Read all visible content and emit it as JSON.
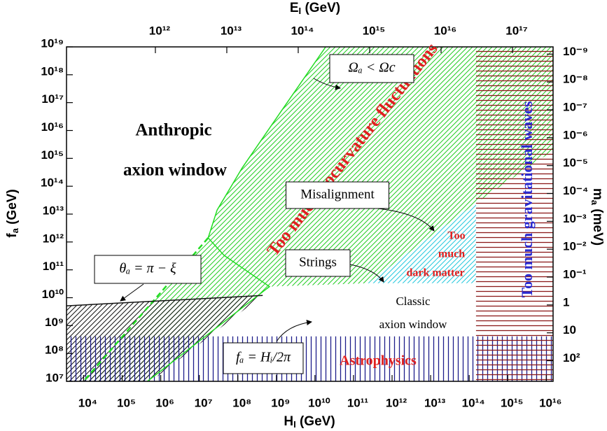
{
  "chart_data": {
    "type": "area",
    "x_label": [
      "H",
      "I",
      " (GeV)"
    ],
    "y_label": [
      "f",
      "a",
      " (GeV)"
    ],
    "x2_label": [
      "E",
      "I",
      " (GeV)"
    ],
    "y2_label": [
      "m",
      "a",
      " (meV)"
    ],
    "xscale": "log",
    "yscale": "log",
    "xlim": [
      3600,
      1.5e+16
    ],
    "ylim": [
      10000000.0,
      1e+19
    ],
    "x2lim": [
      57000000000.0,
      3.7e+17
    ],
    "y2lim": [
      550,
      5.5e-10
    ],
    "xticks": [
      {
        "value": 10000.0,
        "label": "10⁴"
      },
      {
        "value": 100000.0,
        "label": "10⁵"
      },
      {
        "value": 1000000.0,
        "label": "10⁶"
      },
      {
        "value": 10000000.0,
        "label": "10⁷"
      },
      {
        "value": 100000000.0,
        "label": "10⁸"
      },
      {
        "value": 1000000000.0,
        "label": "10⁹"
      },
      {
        "value": 10000000000.0,
        "label": "10¹⁰"
      },
      {
        "value": 100000000000.0,
        "label": "10¹¹"
      },
      {
        "value": 1000000000000.0,
        "label": "10¹²"
      },
      {
        "value": 10000000000000.0,
        "label": "10¹³"
      },
      {
        "value": 100000000000000.0,
        "label": "10¹⁴"
      },
      {
        "value": 1000000000000000.0,
        "label": "10¹⁵"
      },
      {
        "value": 1e+16,
        "label": "10¹⁶"
      }
    ],
    "yticks": [
      {
        "value": 10000000.0,
        "label": "10⁷"
      },
      {
        "value": 100000000.0,
        "label": "10⁸"
      },
      {
        "value": 1000000000.0,
        "label": "10⁹"
      },
      {
        "value": 10000000000.0,
        "label": "10¹⁰"
      },
      {
        "value": 100000000000.0,
        "label": "10¹¹"
      },
      {
        "value": 1000000000000.0,
        "label": "10¹²"
      },
      {
        "value": 10000000000000.0,
        "label": "10¹³"
      },
      {
        "value": 100000000000000.0,
        "label": "10¹⁴"
      },
      {
        "value": 1000000000000000.0,
        "label": "10¹⁵"
      },
      {
        "value": 1e+16,
        "label": "10¹⁶"
      },
      {
        "value": 1e+17,
        "label": "10¹⁷"
      },
      {
        "value": 1e+18,
        "label": "10¹⁸"
      },
      {
        "value": 1e+19,
        "label": "10¹⁹"
      }
    ],
    "x2ticks": [
      {
        "value": 1000000000000.0,
        "label": "10¹²"
      },
      {
        "value": 10000000000000.0,
        "label": "10¹³"
      },
      {
        "value": 100000000000000.0,
        "label": "10¹⁴"
      },
      {
        "value": 1000000000000000.0,
        "label": "10¹⁵"
      },
      {
        "value": 1e+16,
        "label": "10¹⁶"
      },
      {
        "value": 1e+17,
        "label": "10¹⁷"
      }
    ],
    "y2ticks": [
      {
        "value": 1e-09,
        "label": "10⁻⁹"
      },
      {
        "value": 1e-08,
        "label": "10⁻⁸"
      },
      {
        "value": 1e-07,
        "label": "10⁻⁷"
      },
      {
        "value": 1e-06,
        "label": "10⁻⁶"
      },
      {
        "value": 1e-05,
        "label": "10⁻⁵"
      },
      {
        "value": 0.0001,
        "label": "10⁻⁴"
      },
      {
        "value": 0.001,
        "label": "10⁻³"
      },
      {
        "value": 0.01,
        "label": "10⁻²"
      },
      {
        "value": 0.1,
        "label": "10⁻¹"
      },
      1,
      10,
      {
        "value": 100,
        "label": "10²"
      }
    ],
    "regions": [
      {
        "color": "#22cc22",
        "hatch": "diagonal",
        "x": [
          19000000000.0,
          1.5e+16,
          1.5e+16,
          150000000000000.0,
          230000000000.0,
          660000000.0,
          450000.0,
          10000.0,
          17000000.0,
          29000000.0,
          130000000.0,
          1300000000.0
        ],
        "y": [
          1e+19,
          1e+19,
          1900000000000000.0,
          25000000000000.0,
          33000000000.0,
          25000000000.0,
          10000000.0,
          10000000.0,
          1400000000000.0,
          14000000000000.0,
          460000000000000.0,
          4.7e+16
        ]
      },
      {
        "color": "#22c8dd",
        "hatch": "diagonal",
        "x": [
          230000000000.0,
          150000000000000.0,
          150000000000000.0
        ],
        "y": [
          33000000000.0,
          25000000000000.0,
          33000000000.0
        ]
      },
      {
        "color": "#111111",
        "hatch": "diagonal",
        "x": [
          3600,
          440000000.0,
          550000.0,
          3600
        ],
        "y": [
          5100000000.0,
          12000000000.0,
          10000000.0,
          10000000.0
        ]
      },
      {
        "color": "#1c1c8a",
        "hatch": "vertical",
        "x": [
          3600,
          1.5e+16,
          1.5e+16,
          3600
        ],
        "y": [
          10000000.0,
          10000000.0,
          410000000.0,
          410000000.0
        ]
      },
      {
        "color": "#8b1a1a",
        "hatch": "horizontal",
        "x": [
          150000000000000.0,
          1.5e+16,
          1.5e+16,
          150000000000000.0
        ],
        "y": [
          10000000.0,
          10000000.0,
          1e+19,
          1e+19
        ]
      }
    ],
    "lines": [
      {
        "color": "#22dd22",
        "dash": false,
        "x": [
          19000000000.0,
          1300000000.0,
          130000000.0,
          29000000.0,
          17000000.0,
          44000000.0,
          660000000.0,
          450000.0
        ],
        "y": [
          1e+19,
          4.7e+16,
          460000000000000.0,
          14000000000000.0,
          1400000000000.0,
          330000000000.0,
          25000000000.0,
          10000000.0
        ]
      },
      {
        "color": "#22dd22",
        "dash": true,
        "x": [
          17000000.0,
          10000.0
        ],
        "y": [
          1400000000000.0,
          10000000.0
        ]
      },
      {
        "color": "#111111",
        "dash": false,
        "x": [
          3600,
          440000000.0
        ],
        "y": [
          5100000000.0,
          12000000000.0
        ]
      }
    ],
    "annotations": [
      {
        "text": "Too much isocurvature fluctuations",
        "color": "#e02020"
      },
      {
        "text": "Too much gravitational waves",
        "color": "#2a2ad0"
      },
      {
        "text": "Astrophysics",
        "color": "#e02020"
      },
      {
        "text": "Too",
        "color": "#e02020"
      },
      {
        "text": "much",
        "color": "#e02020"
      },
      {
        "text": "dark matter",
        "color": "#e02020"
      },
      {
        "text": "Anthropic",
        "color": "#000000"
      },
      {
        "text": "axion window",
        "color": "#000000"
      },
      {
        "text": "Classic",
        "color": "#000000"
      },
      {
        "text": "axion window",
        "color": "#000000"
      },
      {
        "text": "Ωₐ < Ωc",
        "color": "#000000",
        "box": true
      },
      {
        "text": "Misalignment",
        "color": "#000000",
        "box": true
      },
      {
        "text": "Strings",
        "color": "#000000",
        "box": true
      },
      {
        "text": "θₐ = π − ξ",
        "color": "#000000",
        "box": true
      },
      {
        "text": "fₐ = Hᵢ/2π",
        "color": "#000000",
        "box": true
      }
    ]
  }
}
